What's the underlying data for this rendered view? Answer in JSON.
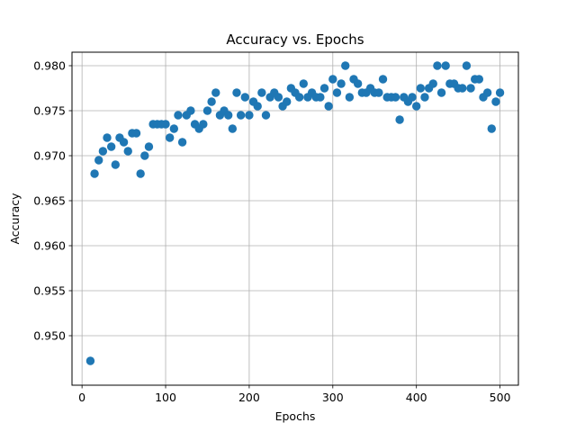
{
  "chart_data": {
    "type": "scatter",
    "title": "Accuracy vs. Epochs",
    "xlabel": "Epochs",
    "ylabel": "Accuracy",
    "xlim": [
      -12,
      522
    ],
    "ylim": [
      0.9445,
      0.9815
    ],
    "xticks": [
      0,
      100,
      200,
      300,
      400,
      500
    ],
    "yticks": [
      0.95,
      0.955,
      0.96,
      0.965,
      0.97,
      0.975,
      0.98
    ],
    "ytick_labels": [
      "0.950",
      "0.955",
      "0.960",
      "0.965",
      "0.970",
      "0.975",
      "0.980"
    ],
    "grid": true,
    "marker_color": "#1f77b4",
    "series": [
      {
        "x": [
          10,
          15,
          20,
          25,
          30,
          35,
          40,
          45,
          50,
          55,
          60,
          65,
          70,
          75,
          80,
          85,
          90,
          95,
          100,
          105,
          110,
          115,
          120,
          125,
          130,
          135,
          140,
          145,
          150,
          155,
          160,
          165,
          170,
          175,
          180,
          185,
          190,
          195,
          200,
          205,
          210,
          215,
          220,
          225,
          230,
          235,
          240,
          245,
          250,
          255,
          260,
          265,
          270,
          275,
          280,
          285,
          290,
          295,
          300,
          305,
          310,
          315,
          320,
          325,
          330,
          335,
          340,
          345,
          350,
          355,
          360,
          365,
          370,
          375,
          380,
          385,
          390,
          395,
          400,
          405,
          410,
          415,
          420,
          425,
          430,
          435,
          440,
          445,
          450,
          455,
          460,
          465,
          470,
          475,
          480,
          485,
          490,
          495,
          500
        ],
        "y": [
          0.9472,
          0.968,
          0.9695,
          0.9705,
          0.972,
          0.971,
          0.969,
          0.972,
          0.9715,
          0.9705,
          0.9725,
          0.9725,
          0.968,
          0.97,
          0.971,
          0.9735,
          0.9735,
          0.9735,
          0.9735,
          0.972,
          0.973,
          0.9745,
          0.9715,
          0.9745,
          0.975,
          0.9735,
          0.973,
          0.9735,
          0.975,
          0.976,
          0.977,
          0.9745,
          0.975,
          0.9745,
          0.973,
          0.977,
          0.9745,
          0.9765,
          0.9745,
          0.976,
          0.9755,
          0.977,
          0.9745,
          0.9765,
          0.977,
          0.9765,
          0.9755,
          0.976,
          0.9775,
          0.977,
          0.9765,
          0.978,
          0.9765,
          0.977,
          0.9765,
          0.9765,
          0.9775,
          0.9755,
          0.9785,
          0.977,
          0.978,
          0.98,
          0.9765,
          0.9785,
          0.978,
          0.977,
          0.977,
          0.9775,
          0.977,
          0.977,
          0.9785,
          0.9765,
          0.9765,
          0.9765,
          0.974,
          0.9765,
          0.976,
          0.9765,
          0.9755,
          0.9775,
          0.9765,
          0.9775,
          0.978,
          0.98,
          0.977,
          0.98,
          0.978,
          0.978,
          0.9775,
          0.9775,
          0.98,
          0.9775,
          0.9785,
          0.9785,
          0.9765,
          0.977,
          0.973,
          0.976,
          0.977
        ]
      }
    ]
  }
}
